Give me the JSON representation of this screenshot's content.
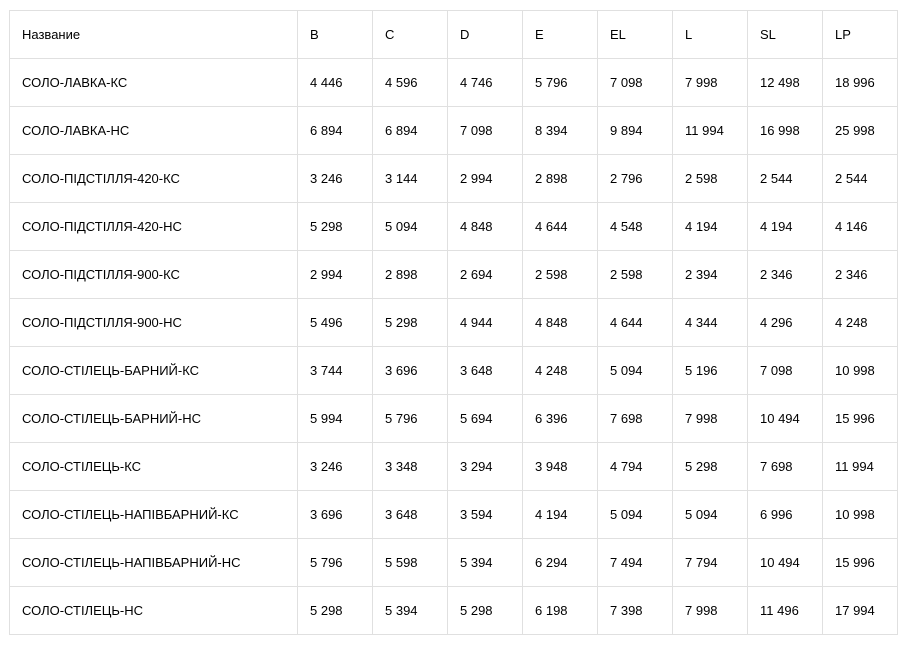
{
  "table": {
    "type": "table",
    "background_color": "#ffffff",
    "border_color": "#e0e0e0",
    "text_color": "#000000",
    "font_size": 13,
    "cell_padding": "16px 12px",
    "column_widths": {
      "name": 288,
      "value": 75
    },
    "columns": [
      "Название",
      "B",
      "C",
      "D",
      "E",
      "EL",
      "L",
      "SL",
      "LP"
    ],
    "rows": [
      {
        "name": "СОЛО-ЛАВКА-КС",
        "B": "4 446",
        "C": "4 596",
        "D": "4 746",
        "E": "5 796",
        "EL": "7 098",
        "L": "7 998",
        "SL": "12 498",
        "LP": "18 996"
      },
      {
        "name": "СОЛО-ЛАВКА-НС",
        "B": "6 894",
        "C": "6 894",
        "D": "7 098",
        "E": "8 394",
        "EL": "9 894",
        "L": "11 994",
        "SL": "16 998",
        "LP": "25 998"
      },
      {
        "name": "СОЛО-ПІДСТІЛЛЯ-420-КС",
        "B": "3 246",
        "C": "3 144",
        "D": "2 994",
        "E": "2 898",
        "EL": "2 796",
        "L": "2 598",
        "SL": "2 544",
        "LP": "2 544"
      },
      {
        "name": "СОЛО-ПІДСТІЛЛЯ-420-НС",
        "B": "5 298",
        "C": "5 094",
        "D": "4 848",
        "E": "4 644",
        "EL": "4 548",
        "L": "4 194",
        "SL": "4 194",
        "LP": "4 146"
      },
      {
        "name": "СОЛО-ПІДСТІЛЛЯ-900-КС",
        "B": "2 994",
        "C": "2 898",
        "D": "2 694",
        "E": "2 598",
        "EL": "2 598",
        "L": "2 394",
        "SL": "2 346",
        "LP": "2 346"
      },
      {
        "name": "СОЛО-ПІДСТІЛЛЯ-900-НС",
        "B": "5 496",
        "C": "5 298",
        "D": "4 944",
        "E": "4 848",
        "EL": "4 644",
        "L": "4 344",
        "SL": "4 296",
        "LP": "4 248"
      },
      {
        "name": "СОЛО-СТІЛЕЦЬ-БАРНИЙ-КС",
        "B": "3 744",
        "C": "3 696",
        "D": "3 648",
        "E": "4 248",
        "EL": "5 094",
        "L": "5 196",
        "SL": "7 098",
        "LP": "10 998"
      },
      {
        "name": "СОЛО-СТІЛЕЦЬ-БАРНИЙ-НС",
        "B": "5 994",
        "C": "5 796",
        "D": "5 694",
        "E": "6 396",
        "EL": "7 698",
        "L": "7 998",
        "SL": "10 494",
        "LP": "15 996"
      },
      {
        "name": "СОЛО-СТІЛЕЦЬ-КС",
        "B": "3 246",
        "C": "3 348",
        "D": "3 294",
        "E": "3 948",
        "EL": "4 794",
        "L": "5 298",
        "SL": "7 698",
        "LP": "11 994"
      },
      {
        "name": "СОЛО-СТІЛЕЦЬ-НАПІВБАРНИЙ-КС",
        "B": "3 696",
        "C": "3 648",
        "D": "3 594",
        "E": "4 194",
        "EL": "5 094",
        "L": "5 094",
        "SL": "6 996",
        "LP": "10 998"
      },
      {
        "name": "СОЛО-СТІЛЕЦЬ-НАПІВБАРНИЙ-НС",
        "B": "5 796",
        "C": "5 598",
        "D": "5 394",
        "E": "6 294",
        "EL": "7 494",
        "L": "7 794",
        "SL": "10 494",
        "LP": "15 996"
      },
      {
        "name": "СОЛО-СТІЛЕЦЬ-НС",
        "B": "5 298",
        "C": "5 394",
        "D": "5 298",
        "E": "6 198",
        "EL": "7 398",
        "L": "7 998",
        "SL": "11 496",
        "LP": "17 994"
      }
    ]
  }
}
